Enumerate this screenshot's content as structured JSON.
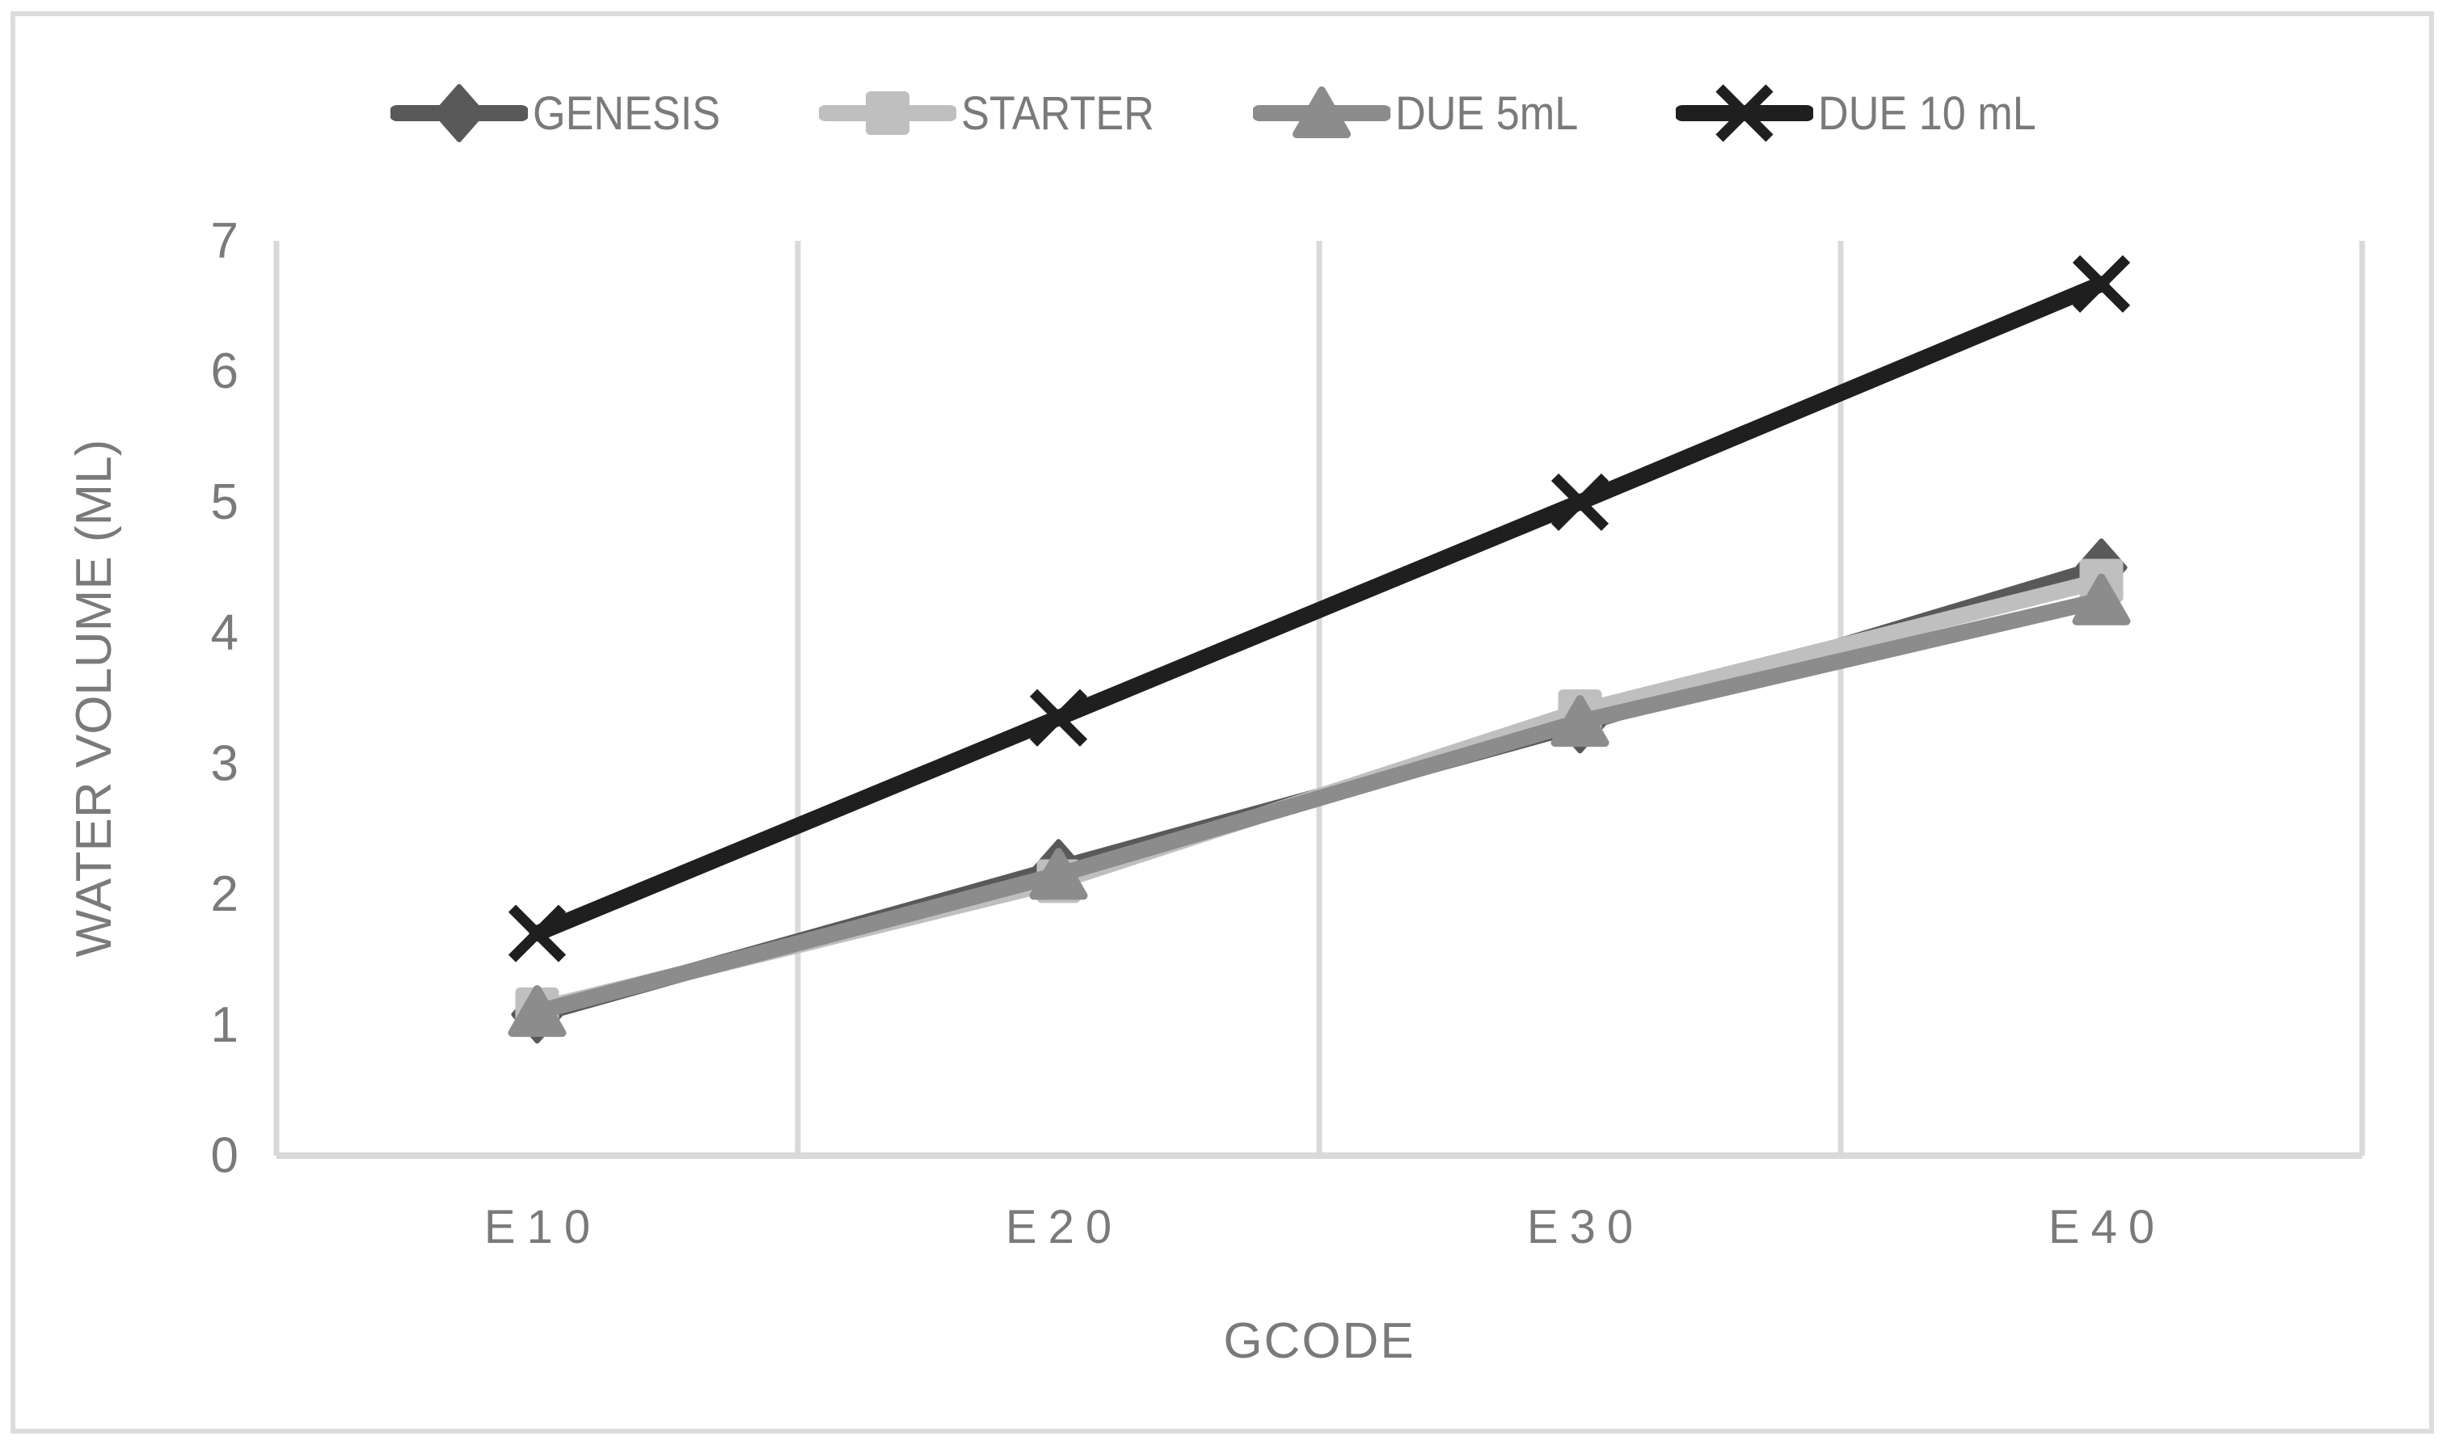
{
  "figure": {
    "background_color": "#ffffff",
    "border_color": "#dcdcdc",
    "text_color": "#7a7a7a",
    "gridline_color": "#d9d9d9",
    "axisline_color": "#d9d9d9"
  },
  "chart_data": {
    "type": "line",
    "title": "",
    "xlabel": "GCODE",
    "ylabel": "WATER VOLUME (ML)",
    "categories": [
      "E10",
      "E20",
      "E30",
      "E40"
    ],
    "y_ticks": [
      "0",
      "1",
      "2",
      "3",
      "4",
      "5",
      "6",
      "7"
    ],
    "ylim": [
      0,
      7
    ],
    "grid": "vertical-only",
    "legend_position": "top",
    "series": [
      {
        "name": "GENESIS",
        "marker": "diamond",
        "color": "#595959",
        "values": [
          1.08,
          2.2,
          3.3,
          4.5
        ]
      },
      {
        "name": "STARTER",
        "marker": "square",
        "color": "#bfbfbf",
        "values": [
          1.12,
          2.1,
          3.4,
          4.4
        ]
      },
      {
        "name": "DUE 5mL",
        "marker": "triangle",
        "color": "#8c8c8c",
        "values": [
          1.1,
          2.15,
          3.32,
          4.25
        ]
      },
      {
        "name": "DUE 10 mL",
        "marker": "x",
        "color": "#1f1f1f",
        "values": [
          1.7,
          3.35,
          5.0,
          6.67
        ]
      }
    ]
  }
}
